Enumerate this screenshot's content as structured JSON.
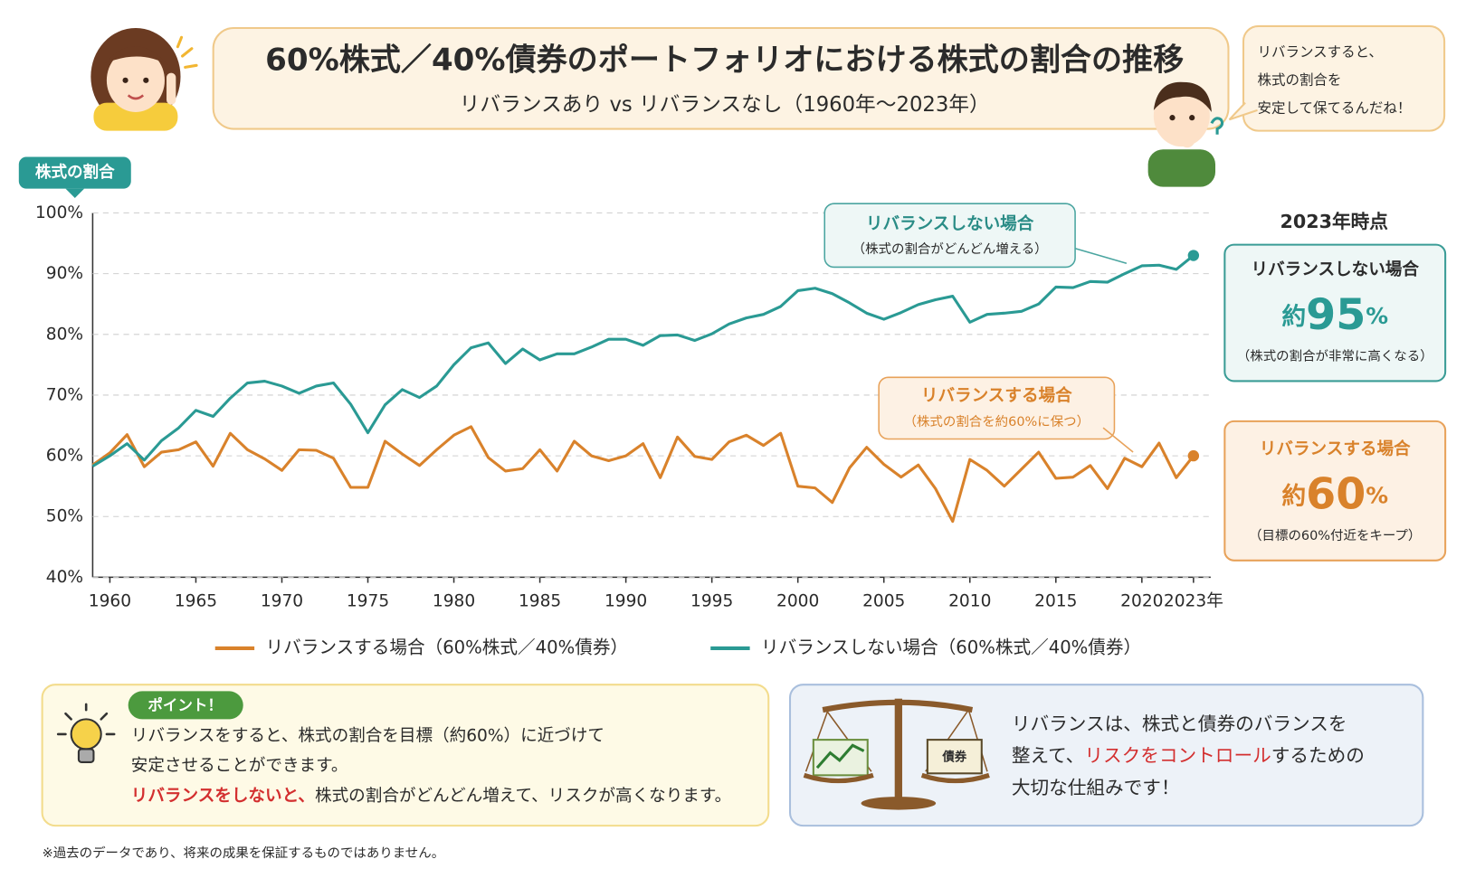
{
  "header": {
    "title": "60%株式／40%債券のポートフォリオにおける株式の割合の推移",
    "subtitle": "リバランスあり vs リバランスなし（1960年～2023年）"
  },
  "speech": [
    "リバランスすると、",
    "株式の割合を",
    "安定して保てるんだね！"
  ],
  "chart_data": {
    "type": "line",
    "y_label": "株式の割合",
    "x": [
      1959,
      1960,
      1961,
      1962,
      1963,
      1964,
      1965,
      1966,
      1967,
      1968,
      1969,
      1970,
      1971,
      1972,
      1973,
      1974,
      1975,
      1976,
      1977,
      1978,
      1979,
      1980,
      1981,
      1982,
      1983,
      1984,
      1985,
      1986,
      1987,
      1988,
      1989,
      1990,
      1991,
      1992,
      1993,
      1994,
      1995,
      1996,
      1997,
      1998,
      1999,
      2000,
      2001,
      2002,
      2003,
      2004,
      2005,
      2006,
      2007,
      2008,
      2009,
      2010,
      2011,
      2012,
      2013,
      2014,
      2015,
      2016,
      2017,
      2018,
      2019,
      2020,
      2021,
      2022,
      2023
    ],
    "xlim": [
      1959,
      2024
    ],
    "xticks": [
      1960,
      1965,
      1970,
      1975,
      1980,
      1985,
      1990,
      1995,
      2000,
      2005,
      2010,
      2015,
      2020,
      {
        "value": 2023,
        "label": "2023年"
      }
    ],
    "ylim": [
      40,
      100
    ],
    "yticks": [
      {
        "value": 40,
        "label": "40%"
      },
      {
        "value": 50,
        "label": "50%"
      },
      {
        "value": 60,
        "label": "60%"
      },
      {
        "value": 70,
        "label": "70%"
      },
      {
        "value": 80,
        "label": "80%"
      },
      {
        "value": 90,
        "label": "90%"
      },
      {
        "value": 100,
        "label": "100%"
      }
    ],
    "grid": true,
    "series": [
      {
        "name": "リバランスする場合（60%株式／40%債券）",
        "color": "#d9822b",
        "values": [
          58.5,
          60.5,
          63.5,
          58.2,
          60.6,
          61,
          62.3,
          58.3,
          63.7,
          61,
          59.5,
          57.6,
          61,
          60.9,
          59.6,
          54.8,
          54.8,
          62.4,
          60.3,
          58.4,
          61,
          63.4,
          64.8,
          59.7,
          57.5,
          57.9,
          61,
          57.5,
          62.4,
          60,
          59.2,
          60,
          62,
          56.4,
          63.1,
          59.9,
          59.4,
          62.3,
          63.4,
          61.7,
          63.7,
          55,
          54.7,
          52.3,
          58,
          61.4,
          58.6,
          56.5,
          58.5,
          54.6,
          49.2,
          59.4,
          57.6,
          55,
          57.8,
          60.6,
          56.3,
          56.5,
          58.4,
          54.6,
          59.6,
          58.2,
          62.1,
          56.4,
          60
        ]
      },
      {
        "name": "リバランスしない場合（60%株式／40%債券）",
        "color": "#2a9a94",
        "values": [
          58.3,
          60,
          62,
          59.3,
          62.5,
          64.6,
          67.5,
          66.5,
          69.5,
          72,
          72.3,
          71.5,
          70.3,
          71.5,
          72,
          68.5,
          63.8,
          68.4,
          70.9,
          69.6,
          71.5,
          75,
          77.8,
          78.6,
          75.2,
          77.6,
          75.8,
          76.8,
          76.8,
          77.9,
          79.2,
          79.2,
          78.2,
          79.8,
          79.9,
          79,
          80.1,
          81.7,
          82.7,
          83.3,
          84.6,
          87.2,
          87.6,
          86.7,
          85.2,
          83.5,
          82.5,
          83.6,
          84.9,
          85.7,
          86.3,
          82,
          83.3,
          83.5,
          83.8,
          85,
          87.8,
          87.7,
          88.7,
          88.6,
          90,
          91.3,
          91.4,
          90.7,
          93
        ]
      }
    ],
    "annotations": [
      {
        "title": "リバランスする場合",
        "note": "（株式の割合を約60%に保つ）"
      },
      {
        "title": "リバランスしない場合",
        "note": "（株式の割合がどんどん増える）"
      }
    ]
  },
  "summary": {
    "title": "2023年時点",
    "boxes": [
      {
        "heading": "リバランスしない場合",
        "prefix": "約",
        "value": "95",
        "unit": "%",
        "note": "（株式の割合が非常に高くなる）"
      },
      {
        "heading": "リバランスする場合",
        "prefix": "約",
        "value": "60",
        "unit": "%",
        "note": "（目標の60%付近をキープ）"
      }
    ]
  },
  "point": {
    "badge": "ポイント！",
    "line1": "リバランスをすると、株式の割合を目標（約60%）に近づけて",
    "line2": "安定させることができます。",
    "line3_emphasis": "リバランスをしないと、",
    "line3_rest": "株式の割合がどんどん増えて、リスクが高くなります。"
  },
  "note_box": {
    "line1": "リバランスは、株式と債券のバランスを",
    "line2_start": "整えて、",
    "line2_emphasis": "リスクをコントロール",
    "line2_end": "するための",
    "line3": "大切な仕組みです！",
    "card_label": "債券"
  },
  "footnote": "※過去のデータであり、将来の成果を保証するものではありません。"
}
